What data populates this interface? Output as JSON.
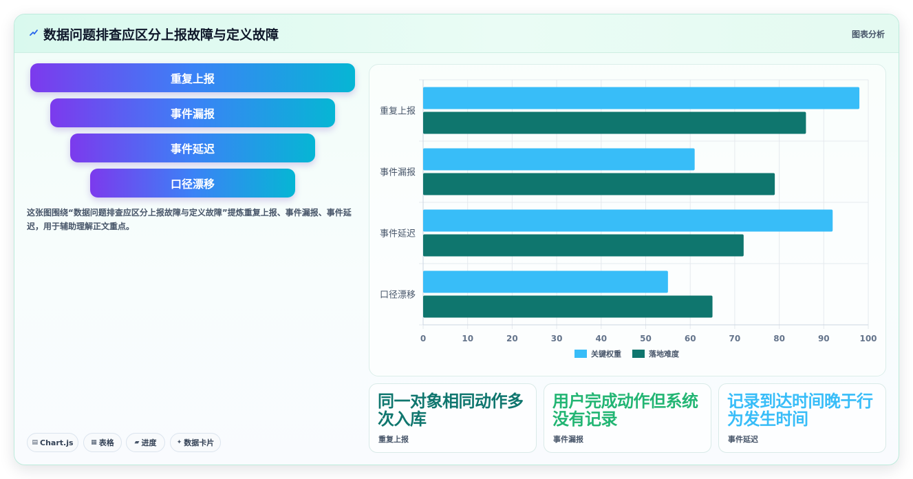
{
  "header": {
    "title": "数据问题排查应区分上报故障与定义故障",
    "tag": "图表分析"
  },
  "funnel": [
    "重复上报",
    "事件漏报",
    "事件延迟",
    "口径漂移"
  ],
  "description": "这张图围绕“数据问题排查应区分上报故障与定义故障”提炼重复上报、事件漏报、事件延迟，用于辅助理解正文重点。",
  "pills": [
    {
      "icon": "chart-icon",
      "glyph": "▤",
      "label": "Chart.js"
    },
    {
      "icon": "table-icon",
      "glyph": "▦",
      "label": "表格"
    },
    {
      "icon": "progress-icon",
      "glyph": "▰",
      "label": "进度"
    },
    {
      "icon": "sparkle-icon",
      "glyph": "✦",
      "label": "数据卡片"
    }
  ],
  "chart_data": {
    "type": "bar",
    "orientation": "horizontal",
    "categories": [
      "重复上报",
      "事件漏报",
      "事件延迟",
      "口径漂移"
    ],
    "series": [
      {
        "name": "关键权重",
        "color": "#38bdf8",
        "values": [
          98,
          61,
          92,
          55
        ]
      },
      {
        "name": "落地难度",
        "color": "#0f766e",
        "values": [
          86,
          79,
          72,
          65
        ]
      }
    ],
    "xlim": [
      0,
      100
    ],
    "x_ticks": [
      "0",
      "10",
      "20",
      "30",
      "40",
      "50",
      "60",
      "70",
      "80",
      "90",
      "100"
    ],
    "grid": true,
    "legend": "bottom"
  },
  "cards": [
    {
      "title": "同一对象相同动作多次入库",
      "label": "重复上报",
      "color": "#0f766e"
    },
    {
      "title": "用户完成动作但系统没有记录",
      "label": "事件漏报",
      "color": "#22b573"
    },
    {
      "title": "记录到达时间晚于行为发生时间",
      "label": "事件延迟",
      "color": "#38bdf8"
    }
  ]
}
